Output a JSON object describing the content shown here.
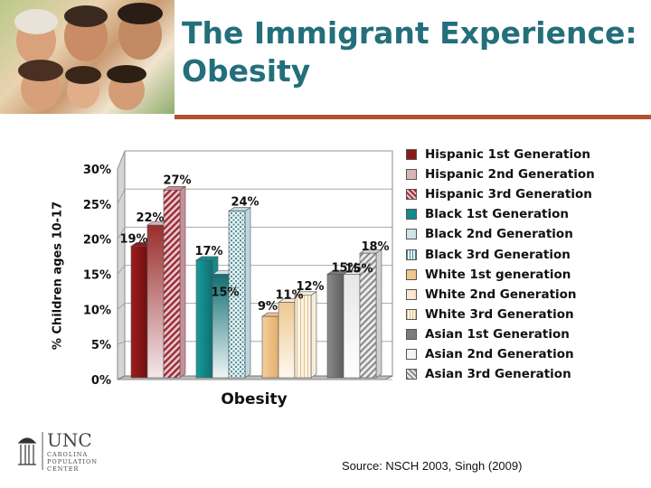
{
  "slide": {
    "title_line1": "The Immigrant Experience:",
    "title_line2": "Obesity",
    "source": "Source: NSCH 2003, Singh (2009)",
    "logo": {
      "name": "UNC",
      "line1": "CAROLINA",
      "line2": "POPULATION",
      "line3": "CENTER"
    }
  },
  "colors": {
    "title": "#236f7b",
    "rule": "#b5522b",
    "series": [
      "#8b1a1a",
      "#d8b6b8",
      "#c98f96",
      "#138c8c",
      "#cfe3e8",
      "#bcd7dd",
      "#f0c58e",
      "#fbe8cf",
      "#f6eeda",
      "#7c7c7c",
      "#f4f4f4",
      "#d0d0d0"
    ]
  },
  "chart_data": {
    "type": "bar",
    "categories": [
      "Obesity"
    ],
    "xlabel": "Obesity",
    "ylabel": "% Children ages 10-17",
    "ylim": [
      0,
      30
    ],
    "yticks": [
      "0%",
      "5%",
      "10%",
      "15%",
      "20%",
      "25%",
      "30%"
    ],
    "grid": true,
    "legend_position": "right",
    "series": [
      {
        "name": "Hispanic 1st Generation",
        "values": [
          19
        ],
        "label": "19%"
      },
      {
        "name": "Hispanic 2nd Generation",
        "values": [
          22
        ],
        "label": "22%"
      },
      {
        "name": "Hispanic 3rd Generation",
        "values": [
          27
        ],
        "label": "27%"
      },
      {
        "name": "Black 1st Generation",
        "values": [
          17
        ],
        "label": "17%"
      },
      {
        "name": "Black 2nd Generation",
        "values": [
          15
        ],
        "label": "15%"
      },
      {
        "name": "Black 3rd Generation",
        "values": [
          24
        ],
        "label": "24%"
      },
      {
        "name": "White 1st generation",
        "values": [
          9
        ],
        "label": "9%"
      },
      {
        "name": "White 2nd Generation",
        "values": [
          11
        ],
        "label": "11%"
      },
      {
        "name": "White 3rd Generation",
        "values": [
          12
        ],
        "label": "12%"
      },
      {
        "name": "Asian 1st Generation",
        "values": [
          15
        ],
        "label": "15%"
      },
      {
        "name": "Asian 2nd Generation",
        "values": [
          15
        ],
        "label": "15%"
      },
      {
        "name": "Asian 3rd Generation",
        "values": [
          18
        ],
        "label": "18%"
      }
    ]
  }
}
